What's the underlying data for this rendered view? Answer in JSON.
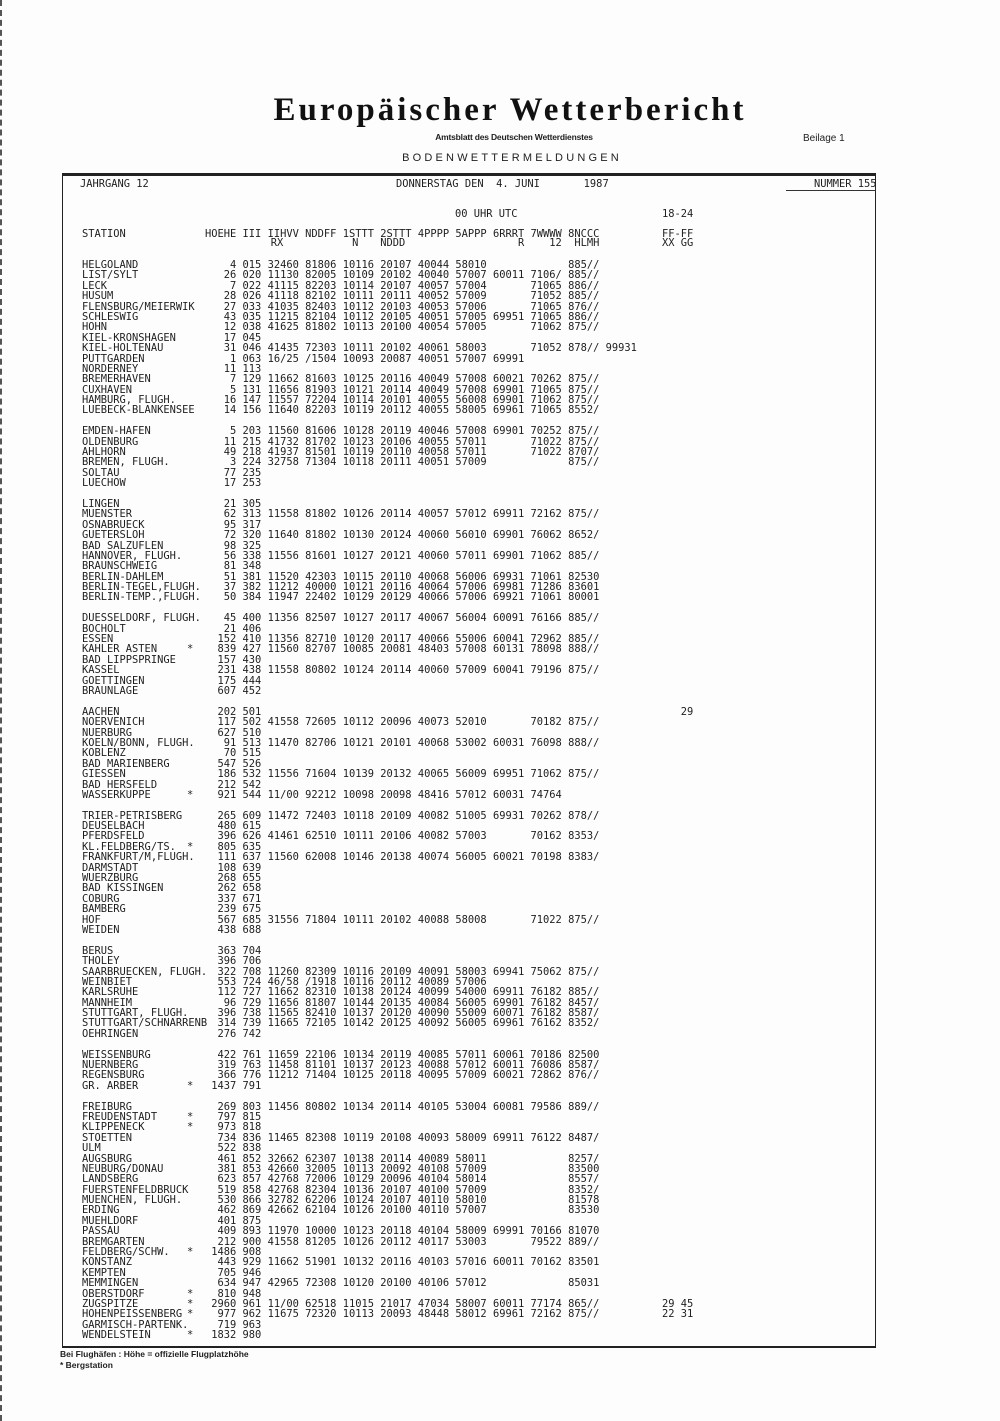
{
  "title": "Europäischer Wetterbericht",
  "subtitle": "Amtsblatt des Deutschen Wetterdienstes",
  "supplement": "Beilage 1",
  "section": "BODENWETTERMELDUNGEN",
  "meta": {
    "volume": "JAHRGANG 12",
    "date": "DONNERSTAG DEN  4. JUNI       1987",
    "number": "NUMMER 155"
  },
  "time_header": {
    "main": "00 UHR UTC",
    "period": "18-24"
  },
  "columns": {
    "line1": [
      "STATION",
      "HOEHE",
      "III",
      "IIHVV",
      "NDDFF",
      "1STTT",
      "2STTT",
      "4PPPP",
      "5APPP",
      "6RRRT",
      "7WWWW",
      "8NCCC",
      "FF-FF"
    ],
    "line2": [
      "RX",
      "N",
      "NDDD",
      "R",
      "12",
      "HLMH",
      "XX GG"
    ]
  },
  "groups": [
    {
      "rows": [
        [
          "HELGOLAND",
          "",
          "4",
          "015",
          "32460",
          "81806",
          "10116",
          "20107",
          "40044",
          "58010",
          "",
          "",
          "885//"
        ],
        [
          "LIST/SYLT",
          "",
          "26",
          "020",
          "11130",
          "82005",
          "10109",
          "20102",
          "40040",
          "57007",
          "60011",
          "7106/",
          "885//"
        ],
        [
          "LECK",
          "",
          "7",
          "022",
          "41115",
          "82203",
          "10114",
          "20107",
          "40057",
          "57004",
          "",
          "71065",
          "886//"
        ],
        [
          "HUSUM",
          "",
          "28",
          "026",
          "41118",
          "82102",
          "10111",
          "20111",
          "40052",
          "57009",
          "",
          "71052",
          "885//"
        ],
        [
          "FLENSBURG/MEIERWIK",
          "",
          "27",
          "033",
          "41035",
          "82403",
          "10112",
          "20103",
          "40053",
          "57006",
          "",
          "71065",
          "876//"
        ],
        [
          "SCHLESWIG",
          "",
          "43",
          "035",
          "11215",
          "82104",
          "10112",
          "20105",
          "40051",
          "57005",
          "69951",
          "71065",
          "886//"
        ],
        [
          "HOHN",
          "",
          "12",
          "038",
          "41625",
          "81802",
          "10113",
          "20100",
          "40054",
          "57005",
          "",
          "71062",
          "875//"
        ],
        [
          "KIEL-KRONSHAGEN",
          "",
          "17",
          "045"
        ],
        [
          "KIEL-HOLTENAU",
          "",
          "31",
          "046",
          "41435",
          "72303",
          "10111",
          "20102",
          "40061",
          "58003",
          "",
          "71052",
          "878//",
          "99931"
        ],
        [
          "PUTTGARDEN",
          "",
          "1",
          "063",
          "16/25",
          "/1504",
          "10093",
          "20087",
          "40051",
          "57007",
          "69991"
        ],
        [
          "NORDERNEY",
          "",
          "11",
          "113"
        ],
        [
          "BREMERHAVEN",
          "",
          "7",
          "129",
          "11662",
          "81603",
          "10125",
          "20116",
          "40049",
          "57008",
          "60021",
          "70262",
          "875//"
        ],
        [
          "CUXHAVEN",
          "",
          "5",
          "131",
          "11656",
          "81903",
          "10121",
          "20114",
          "40049",
          "57008",
          "69901",
          "71065",
          "875//"
        ],
        [
          "HAMBURG, FLUGH.",
          "",
          "16",
          "147",
          "11557",
          "72204",
          "10114",
          "20101",
          "40055",
          "56008",
          "69901",
          "71062",
          "875//"
        ],
        [
          "LUEBECK-BLANKENSEE",
          "",
          "14",
          "156",
          "11640",
          "82203",
          "10119",
          "20112",
          "40055",
          "58005",
          "69961",
          "71065",
          "8552/"
        ]
      ]
    },
    {
      "rows": [
        [
          "EMDEN-HAFEN",
          "",
          "5",
          "203",
          "11560",
          "81606",
          "10128",
          "20119",
          "40046",
          "57008",
          "69901",
          "70252",
          "875//"
        ],
        [
          "OLDENBURG",
          "",
          "11",
          "215",
          "41732",
          "81702",
          "10123",
          "20106",
          "40055",
          "57011",
          "",
          "71022",
          "875//"
        ],
        [
          "AHLHORN",
          "",
          "49",
          "218",
          "41937",
          "81501",
          "10119",
          "20110",
          "40058",
          "57011",
          "",
          "71022",
          "8707/"
        ],
        [
          "BREMEN, FLUGH.",
          "",
          "3",
          "224",
          "32758",
          "71304",
          "10118",
          "20111",
          "40051",
          "57009",
          "",
          "",
          "875//"
        ],
        [
          "SOLTAU",
          "",
          "77",
          "235"
        ],
        [
          "LUECHOW",
          "",
          "17",
          "253"
        ]
      ]
    },
    {
      "rows": [
        [
          "LINGEN",
          "",
          "21",
          "305"
        ],
        [
          "MUENSTER",
          "",
          "62",
          "313",
          "11558",
          "81802",
          "10126",
          "20114",
          "40057",
          "57012",
          "69911",
          "72162",
          "875//"
        ],
        [
          "OSNABRUECK",
          "",
          "95",
          "317"
        ],
        [
          "GUETERSLOH",
          "",
          "72",
          "320",
          "11640",
          "81802",
          "10130",
          "20124",
          "40060",
          "56010",
          "69901",
          "76062",
          "8652/"
        ],
        [
          "BAD SALZUFLEN",
          "",
          "98",
          "325"
        ],
        [
          "HANNOVER, FLUGH.",
          "",
          "56",
          "338",
          "11556",
          "81601",
          "10127",
          "20121",
          "40060",
          "57011",
          "69901",
          "71062",
          "885//"
        ],
        [
          "BRAUNSCHWEIG",
          "",
          "81",
          "348"
        ],
        [
          "BERLIN-DAHLEM",
          "",
          "51",
          "381",
          "11520",
          "42303",
          "10115",
          "20110",
          "40068",
          "56006",
          "69931",
          "71061",
          "82530"
        ],
        [
          "BERLIN-TEGEL,FLUGH.",
          "",
          "37",
          "382",
          "11212",
          "40000",
          "10121",
          "20116",
          "40064",
          "57006",
          "69981",
          "71286",
          "83601"
        ],
        [
          "BERLIN-TEMP.,FLUGH.",
          "",
          "50",
          "384",
          "11947",
          "22402",
          "10129",
          "20129",
          "40066",
          "57006",
          "69921",
          "71061",
          "80001"
        ]
      ]
    },
    {
      "rows": [
        [
          "DUESSELDORF, FLUGH.",
          "",
          "45",
          "400",
          "11356",
          "82507",
          "10127",
          "20117",
          "40067",
          "56004",
          "60091",
          "76166",
          "885//"
        ],
        [
          "BOCHOLT",
          "",
          "21",
          "406"
        ],
        [
          "ESSEN",
          "",
          "152",
          "410",
          "11356",
          "82710",
          "10120",
          "20117",
          "40066",
          "55006",
          "60041",
          "72962",
          "885//"
        ],
        [
          "KAHLER ASTEN",
          "*",
          "839",
          "427",
          "11560",
          "82707",
          "10085",
          "20081",
          "48403",
          "57008",
          "60131",
          "78098",
          "888//"
        ],
        [
          "BAD LIPPSPRINGE",
          "",
          "157",
          "430"
        ],
        [
          "KASSEL",
          "",
          "231",
          "438",
          "11558",
          "80802",
          "10124",
          "20114",
          "40060",
          "57009",
          "60041",
          "79196",
          "875//"
        ],
        [
          "GOETTINGEN",
          "",
          "175",
          "444"
        ],
        [
          "BRAUNLAGE",
          "",
          "607",
          "452"
        ]
      ]
    },
    {
      "rows": [
        [
          "AACHEN",
          "",
          "202",
          "501",
          "",
          "",
          "",
          "",
          "",
          "",
          "",
          "",
          "",
          "",
          "",
          "29"
        ],
        [
          "NOERVENICH",
          "",
          "117",
          "502",
          "41558",
          "72605",
          "10112",
          "20096",
          "40073",
          "52010",
          "",
          "70182",
          "875//"
        ],
        [
          "NUERBURG",
          "",
          "627",
          "510"
        ],
        [
          "KOELN/BONN, FLUGH.",
          "",
          "91",
          "513",
          "11470",
          "82706",
          "10121",
          "20101",
          "40068",
          "53002",
          "60031",
          "76098",
          "888//"
        ],
        [
          "KOBLENZ",
          "",
          "70",
          "515"
        ],
        [
          "BAD MARIENBERG",
          "",
          "547",
          "526"
        ],
        [
          "GIESSEN",
          "",
          "186",
          "532",
          "11556",
          "71604",
          "10139",
          "20132",
          "40065",
          "56009",
          "69951",
          "71062",
          "875//"
        ],
        [
          "BAD HERSFELD",
          "",
          "212",
          "542"
        ],
        [
          "WASSERKUPPE",
          "*",
          "921",
          "544",
          "11/00",
          "92212",
          "10098",
          "20098",
          "48416",
          "57012",
          "60031",
          "74764"
        ]
      ]
    },
    {
      "rows": [
        [
          "TRIER-PETRISBERG",
          "",
          "265",
          "609",
          "11472",
          "72403",
          "10118",
          "20109",
          "40082",
          "51005",
          "69931",
          "70262",
          "878//"
        ],
        [
          "DEUSELBACH",
          "",
          "480",
          "615"
        ],
        [
          "PFERDSFELD",
          "",
          "396",
          "626",
          "41461",
          "62510",
          "10111",
          "20106",
          "40082",
          "57003",
          "",
          "70162",
          "8353/"
        ],
        [
          "KL.FELDBERG/TS.",
          "*",
          "805",
          "635"
        ],
        [
          "FRANKFURT/M,FLUGH.",
          "",
          "111",
          "637",
          "11560",
          "62008",
          "10146",
          "20138",
          "40074",
          "56005",
          "60021",
          "70198",
          "8383/"
        ],
        [
          "DARMSTADT",
          "",
          "108",
          "639"
        ],
        [
          "WUERZBURG",
          "",
          "268",
          "655"
        ],
        [
          "BAD KISSINGEN",
          "",
          "262",
          "658"
        ],
        [
          "COBURG",
          "",
          "337",
          "671"
        ],
        [
          "BAMBERG",
          "",
          "239",
          "675"
        ],
        [
          "HOF",
          "",
          "567",
          "685",
          "31556",
          "71804",
          "10111",
          "20102",
          "40088",
          "58008",
          "",
          "71022",
          "875//"
        ],
        [
          "WEIDEN",
          "",
          "438",
          "688"
        ]
      ]
    },
    {
      "rows": [
        [
          "BERUS",
          "",
          "363",
          "704"
        ],
        [
          "THOLEY",
          "",
          "396",
          "706"
        ],
        [
          "SAARBRUECKEN, FLUGH.",
          "",
          "322",
          "708",
          "11260",
          "82309",
          "10116",
          "20109",
          "40091",
          "58003",
          "69941",
          "75062",
          "875//"
        ],
        [
          "WEINBIET",
          "",
          "553",
          "724",
          "46/58",
          "/1918",
          "10116",
          "20112",
          "40089",
          "57006"
        ],
        [
          "KARLSRUHE",
          "",
          "112",
          "727",
          "11662",
          "82310",
          "10138",
          "20124",
          "40099",
          "54000",
          "69911",
          "76182",
          "885//"
        ],
        [
          "MANNHEIM",
          "",
          "96",
          "729",
          "11656",
          "81807",
          "10144",
          "20135",
          "40084",
          "56005",
          "69901",
          "76182",
          "8457/"
        ],
        [
          "STUTTGART, FLUGH.",
          "",
          "396",
          "738",
          "11565",
          "82410",
          "10137",
          "20120",
          "40090",
          "55009",
          "60071",
          "76182",
          "8587/"
        ],
        [
          "STUTTGART/SCHNARRENB",
          "",
          "314",
          "739",
          "11665",
          "72105",
          "10142",
          "20125",
          "40092",
          "56005",
          "69961",
          "76162",
          "8352/"
        ],
        [
          "OEHRINGEN",
          "",
          "276",
          "742"
        ]
      ]
    },
    {
      "rows": [
        [
          "WEISSENBURG",
          "",
          "422",
          "761",
          "11659",
          "22106",
          "10134",
          "20119",
          "40085",
          "57011",
          "60061",
          "70186",
          "82500"
        ],
        [
          "NUERNBERG",
          "",
          "319",
          "763",
          "11458",
          "81101",
          "10137",
          "20123",
          "40088",
          "57012",
          "60011",
          "76086",
          "8587/"
        ],
        [
          "REGENSBURG",
          "",
          "366",
          "776",
          "11212",
          "71404",
          "10125",
          "20118",
          "40095",
          "57009",
          "60021",
          "72862",
          "876//"
        ],
        [
          "GR. ARBER",
          "*",
          "1437",
          "791"
        ]
      ]
    },
    {
      "rows": [
        [
          "FREIBURG",
          "",
          "269",
          "803",
          "11456",
          "80802",
          "10134",
          "20114",
          "40105",
          "53004",
          "60081",
          "79586",
          "889//"
        ],
        [
          "FREUDENSTADT",
          "*",
          "797",
          "815"
        ],
        [
          "KLIPPENECK",
          "*",
          "973",
          "818"
        ],
        [
          "STOETTEN",
          "",
          "734",
          "836",
          "11465",
          "82308",
          "10119",
          "20108",
          "40093",
          "58009",
          "69911",
          "76122",
          "8487/"
        ],
        [
          "ULM",
          "",
          "522",
          "838"
        ],
        [
          "AUGSBURG",
          "",
          "461",
          "852",
          "32662",
          "62307",
          "10138",
          "20114",
          "40089",
          "58011",
          "",
          "",
          "8257/"
        ],
        [
          "NEUBURG/DONAU",
          "",
          "381",
          "853",
          "42660",
          "32005",
          "10113",
          "20092",
          "40108",
          "57009",
          "",
          "",
          "83500"
        ],
        [
          "LANDSBERG",
          "",
          "623",
          "857",
          "42768",
          "72006",
          "10129",
          "20096",
          "40104",
          "58014",
          "",
          "",
          "8557/"
        ],
        [
          "FUERSTENFELDBRUCK",
          "",
          "519",
          "858",
          "42768",
          "82304",
          "10136",
          "20107",
          "40100",
          "57009",
          "",
          "",
          "8352/"
        ],
        [
          "MUENCHEN, FLUGH.",
          "",
          "530",
          "866",
          "32782",
          "62206",
          "10124",
          "20107",
          "40110",
          "58010",
          "",
          "",
          "81578"
        ],
        [
          "ERDING",
          "",
          "462",
          "869",
          "42662",
          "62104",
          "10126",
          "20100",
          "40110",
          "57007",
          "",
          "",
          "83530"
        ],
        [
          "MUEHLDORF",
          "",
          "401",
          "875"
        ],
        [
          "PASSAU",
          "",
          "409",
          "893",
          "11970",
          "10000",
          "10123",
          "20118",
          "40104",
          "58009",
          "69991",
          "70166",
          "81070"
        ],
        [
          "BREMGARTEN",
          "",
          "212",
          "900",
          "41558",
          "81205",
          "10126",
          "20112",
          "40117",
          "53003",
          "",
          "79522",
          "889//"
        ],
        [
          "FELDBERG/SCHW.",
          "*",
          "1486",
          "908"
        ],
        [
          "KONSTANZ",
          "",
          "443",
          "929",
          "11662",
          "51901",
          "10132",
          "20116",
          "40103",
          "57016",
          "60011",
          "70162",
          "83501"
        ],
        [
          "KEMPTEN",
          "",
          "705",
          "946"
        ],
        [
          "MEMMINGEN",
          "",
          "634",
          "947",
          "42965",
          "72308",
          "10120",
          "20100",
          "40106",
          "57012",
          "",
          "",
          "85031"
        ],
        [
          "OBERSTDORF",
          "*",
          "810",
          "948"
        ],
        [
          "ZUGSPITZE",
          "*",
          "2960",
          "961",
          "11/00",
          "62518",
          "11015",
          "21017",
          "47034",
          "58007",
          "60011",
          "77174",
          "865//",
          "",
          "29",
          "45"
        ],
        [
          "HOHENPEISSENBERG",
          "*",
          "977",
          "962",
          "11675",
          "72320",
          "10113",
          "20093",
          "48448",
          "58012",
          "69961",
          "72162",
          "875//",
          "",
          "22",
          "31"
        ],
        [
          "GARMISCH-PARTENK.",
          "",
          "719",
          "963"
        ],
        [
          "WENDELSTEIN",
          "*",
          "1832",
          "980"
        ]
      ]
    }
  ],
  "footer": {
    "note1": "Bei Flughäfen : Höhe = offizielle Flugplatzhöhe",
    "note2": "* Bergstation"
  }
}
